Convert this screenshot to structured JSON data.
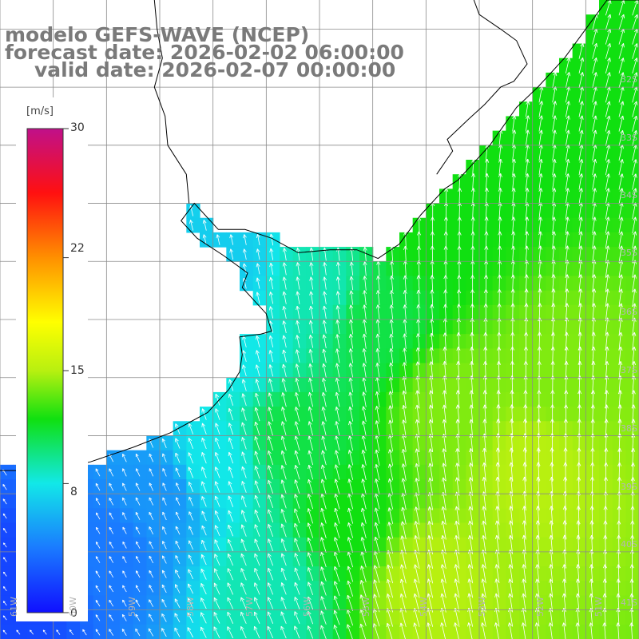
{
  "titles": {
    "line1": "modelo GEFS-WAVE (NCEP)",
    "line2": "forecast date: 2026-02-02 06:00:00",
    "line3": "valid date: 2026-02-07 00:00:00"
  },
  "colorbar": {
    "unit": "[m/s]",
    "ticks": [
      {
        "value": 30,
        "label": "30"
      },
      {
        "value": 22,
        "label": "22"
      },
      {
        "value": 15,
        "label": "15"
      },
      {
        "value": 8,
        "label": "8"
      },
      {
        "value": 0,
        "label": "0"
      }
    ],
    "min": 0,
    "max": 30,
    "stops": [
      {
        "value": 0,
        "color": "#1010ff"
      },
      {
        "value": 4,
        "color": "#1a7aff"
      },
      {
        "value": 8,
        "color": "#12e8e8"
      },
      {
        "value": 12,
        "color": "#10e010"
      },
      {
        "value": 15,
        "color": "#b8f010"
      },
      {
        "value": 18,
        "color": "#ffff00"
      },
      {
        "value": 22,
        "color": "#ff9000"
      },
      {
        "value": 26,
        "color": "#ff1010"
      },
      {
        "value": 30,
        "color": "#c0108a"
      }
    ]
  },
  "map": {
    "lon_range": [
      -62,
      -50
    ],
    "lat_range": [
      -41.5,
      -30.5
    ],
    "lat_labels": [
      "32S",
      "33S",
      "34S",
      "35S",
      "36S",
      "37S",
      "38S",
      "39S",
      "40S",
      "41S"
    ],
    "lon_labels": [
      "61W",
      "60W",
      "59W",
      "58W",
      "57W",
      "56W",
      "55W",
      "54W",
      "53W",
      "52W",
      "51W"
    ],
    "grid_color": "#8a8a8a",
    "land_color": "#ffffff",
    "coast_color": "#000000",
    "arrow_color": "#ffffff",
    "wind_speed_ms": [
      {
        "lon": -61.5,
        "lat": -40.5,
        "value": 2
      },
      {
        "lon": -60.0,
        "lat": -40.0,
        "value": 4
      },
      {
        "lon": -59.0,
        "lat": -39.0,
        "value": 5
      },
      {
        "lon": -58.0,
        "lat": -38.5,
        "value": 8
      },
      {
        "lon": -57.5,
        "lat": -36.5,
        "value": 8
      },
      {
        "lon": -57.8,
        "lat": -35.0,
        "value": 7
      },
      {
        "lon": -56.0,
        "lat": -35.5,
        "value": 9
      },
      {
        "lon": -56.5,
        "lat": -38.0,
        "value": 11
      },
      {
        "lon": -55.0,
        "lat": -36.0,
        "value": 11
      },
      {
        "lon": -54.0,
        "lat": -34.5,
        "value": 12
      },
      {
        "lon": -52.5,
        "lat": -33.0,
        "value": 12
      },
      {
        "lon": -51.0,
        "lat": -32.0,
        "value": 12
      },
      {
        "lon": -53.5,
        "lat": -37.5,
        "value": 14
      },
      {
        "lon": -52.0,
        "lat": -38.5,
        "value": 15
      },
      {
        "lon": -51.5,
        "lat": -37.0,
        "value": 14
      },
      {
        "lon": -54.0,
        "lat": -40.5,
        "value": 15
      },
      {
        "lon": -55.5,
        "lat": -39.5,
        "value": 12
      },
      {
        "lon": -57.0,
        "lat": -40.5,
        "value": 9
      }
    ]
  }
}
